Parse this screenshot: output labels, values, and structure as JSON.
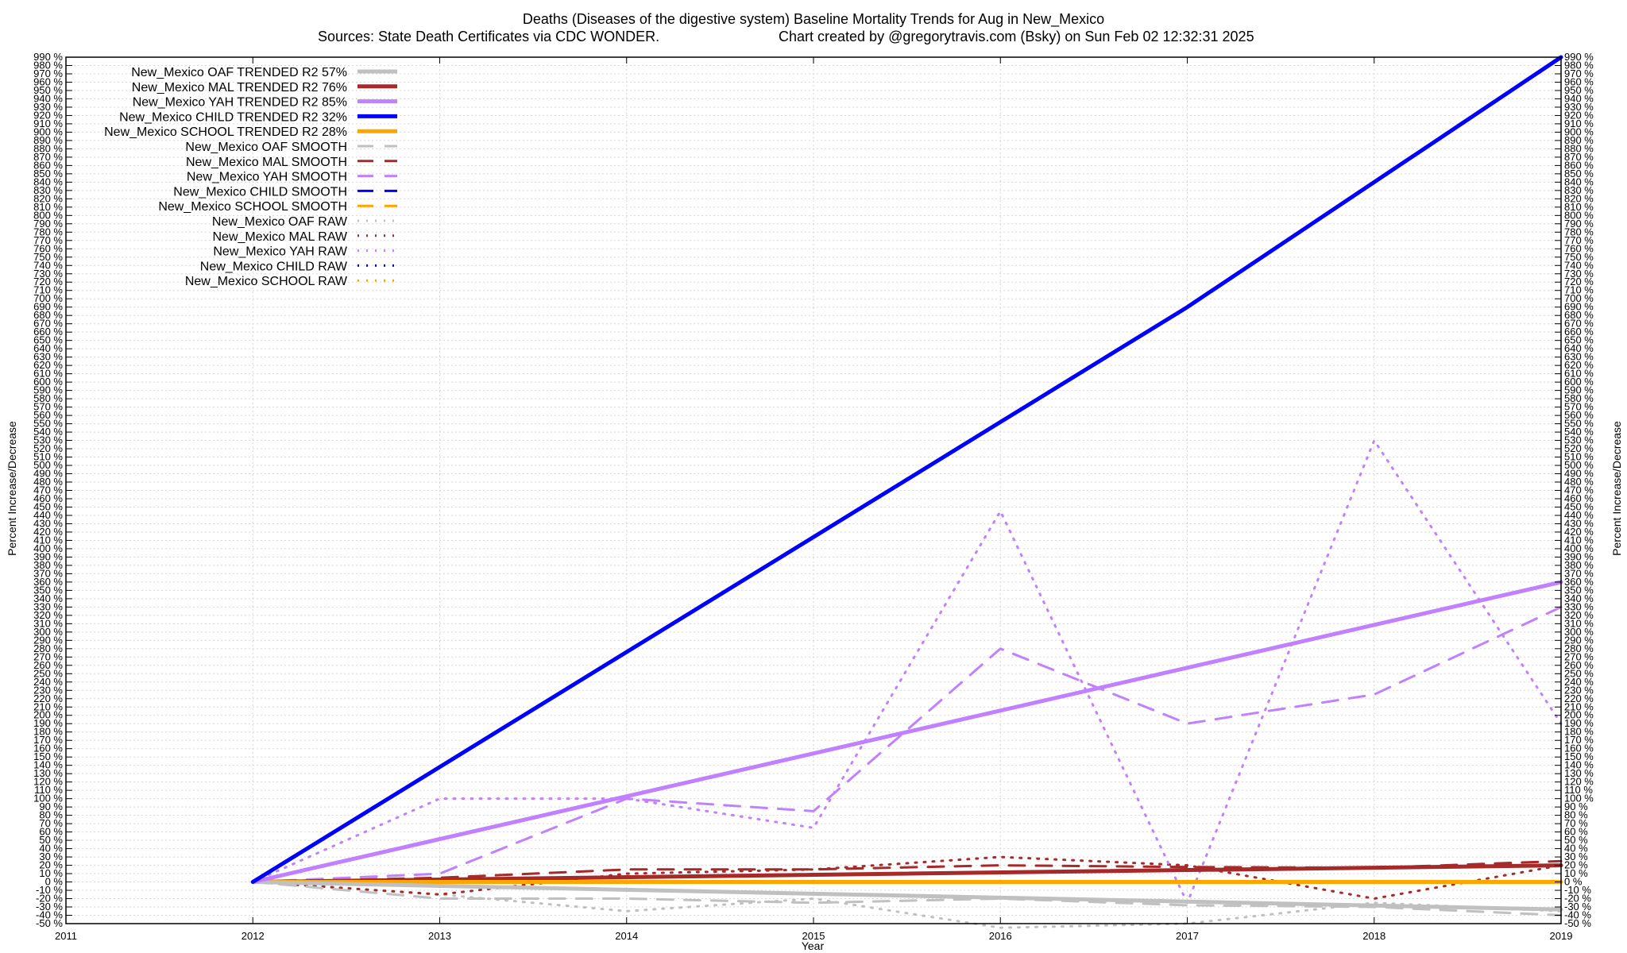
{
  "chart_data": {
    "type": "line",
    "title": "Deaths (Diseases of the digestive system)  Baseline Mortality Trends for Aug in New_Mexico",
    "subtitle_left": "Sources: State Death Certificates via CDC WONDER.",
    "subtitle_right": "Chart created by @gregorytravis.com (Bsky) on Sun Feb 02 12:32:31 2025",
    "xlabel": "Year",
    "ylabel": "Percent Increase/Decrease",
    "ylabel_right": "Percent Increase/Decrease",
    "xlim": [
      2011,
      2019
    ],
    "ylim": [
      -50,
      990
    ],
    "ytick_step": 10,
    "x_ticks": [
      "2011",
      "2012",
      "2013",
      "2014",
      "2015",
      "2016",
      "2017",
      "2018",
      "2019"
    ],
    "grid": true,
    "legend_position": "top-left",
    "series": [
      {
        "name": "New_Mexico OAF TRENDED R2  57%",
        "style": "solid",
        "width": 5,
        "color": "#c0c0c0",
        "x": [
          2012,
          2019
        ],
        "y": [
          0,
          -33
        ]
      },
      {
        "name": "New_Mexico MAL TRENDED R2  76%",
        "style": "solid",
        "width": 5,
        "color": "#a52a2a",
        "x": [
          2012,
          2019
        ],
        "y": [
          0,
          20
        ]
      },
      {
        "name": "New_Mexico YAH TRENDED R2  85%",
        "style": "solid",
        "width": 5,
        "color": "#c080ff",
        "x": [
          2012,
          2019
        ],
        "y": [
          0,
          360
        ]
      },
      {
        "name": "New_Mexico CHILD TRENDED R2  32%",
        "style": "solid",
        "width": 5,
        "color": "#0000ff",
        "x": [
          2012,
          2017,
          2019
        ],
        "y": [
          0,
          690,
          990
        ]
      },
      {
        "name": "New_Mexico SCHOOL TRENDED R2  28%",
        "style": "solid",
        "width": 5,
        "color": "#ffa500",
        "x": [
          2012,
          2019
        ],
        "y": [
          0,
          0
        ]
      },
      {
        "name": "New_Mexico OAF SMOOTH",
        "style": "dashed",
        "width": 3,
        "color": "#c0c0c0",
        "x": [
          2012,
          2013,
          2014,
          2015,
          2016,
          2017,
          2018,
          2019
        ],
        "y": [
          0,
          -20,
          -20,
          -25,
          -20,
          -28,
          -30,
          -40
        ]
      },
      {
        "name": "New_Mexico MAL SMOOTH",
        "style": "dashed",
        "width": 3,
        "color": "#a52a2a",
        "x": [
          2012,
          2013,
          2014,
          2015,
          2016,
          2017,
          2018,
          2019
        ],
        "y": [
          0,
          5,
          15,
          15,
          20,
          18,
          17,
          25
        ]
      },
      {
        "name": "New_Mexico YAH SMOOTH",
        "style": "dashed",
        "width": 3,
        "color": "#c080ff",
        "x": [
          2012,
          2013,
          2014,
          2015,
          2016,
          2017,
          2018,
          2019
        ],
        "y": [
          0,
          10,
          100,
          85,
          280,
          190,
          225,
          330
        ]
      },
      {
        "name": "New_Mexico CHILD SMOOTH",
        "style": "dashed",
        "width": 3,
        "color": "#0000ff",
        "x": [],
        "y": []
      },
      {
        "name": "New_Mexico SCHOOL SMOOTH",
        "style": "dashed",
        "width": 3,
        "color": "#ffa500",
        "x": [],
        "y": []
      },
      {
        "name": "New_Mexico OAF RAW",
        "style": "dotted",
        "width": 3,
        "color": "#c0c0c0",
        "x": [
          2012,
          2013,
          2014,
          2015,
          2016,
          2017,
          2018,
          2019
        ],
        "y": [
          0,
          -15,
          -35,
          -20,
          -55,
          -50,
          -25,
          -35
        ]
      },
      {
        "name": "New_Mexico MAL RAW",
        "style": "dotted",
        "width": 3,
        "color": "#a52a2a",
        "x": [
          2012,
          2013,
          2014,
          2015,
          2016,
          2017,
          2018,
          2019
        ],
        "y": [
          0,
          -15,
          10,
          15,
          30,
          20,
          -20,
          20
        ]
      },
      {
        "name": "New_Mexico YAH RAW",
        "style": "dotted",
        "width": 3,
        "color": "#c080ff",
        "x": [
          2012,
          2013,
          2014,
          2015,
          2016,
          2017,
          2018,
          2019
        ],
        "y": [
          0,
          100,
          100,
          65,
          445,
          -25,
          530,
          190
        ]
      },
      {
        "name": "New_Mexico CHILD RAW",
        "style": "dotted",
        "width": 3,
        "color": "#0000ff",
        "x": [],
        "y": []
      },
      {
        "name": "New_Mexico SCHOOL RAW",
        "style": "dotted",
        "width": 3,
        "color": "#ffa500",
        "x": [],
        "y": []
      }
    ]
  }
}
